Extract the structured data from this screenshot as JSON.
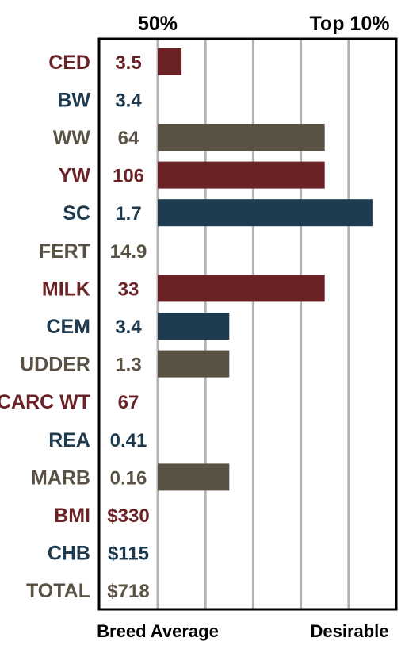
{
  "chart_data": {
    "type": "bar",
    "orientation": "horizontal",
    "top_labels": [
      "50%",
      "Top 10%"
    ],
    "bottom_labels": [
      "Breed Average",
      "Desirable"
    ],
    "grid": true,
    "categories": [
      "CED",
      "BW",
      "WW",
      "YW",
      "SC",
      "FERT",
      "MILK",
      "CEM",
      "UDDER",
      "CARC WT",
      "REA",
      "MARB",
      "BMI",
      "CHB",
      "TOTAL"
    ],
    "values_text": [
      "3.5",
      "3.4",
      "64",
      "106",
      "1.7",
      "14.9",
      "33",
      "3.4",
      "1.3",
      "67",
      "0.41",
      "0.16",
      "$330",
      "$115",
      "$718"
    ],
    "bar_levels": [
      0.5,
      0,
      3.5,
      3.5,
      4.5,
      0,
      3.5,
      1.5,
      1.5,
      0,
      0,
      1.5,
      0,
      0,
      0
    ],
    "xlim": [
      0,
      5
    ],
    "label_colors": [
      "#6b2226",
      "#1e3a4f",
      "#5a5145",
      "#6b2226",
      "#1e3a4f",
      "#5a5145",
      "#6b2226",
      "#1e3a4f",
      "#5a5145",
      "#6b2226",
      "#1e3a4f",
      "#5a5145",
      "#6b2226",
      "#1e3a4f",
      "#5a5145"
    ],
    "colors": {
      "red": "#6b2226",
      "navy": "#1e3a4f",
      "taupe": "#5a5145",
      "grid": "#b3b3b7",
      "frame": "#000000",
      "text": "#000000"
    }
  }
}
